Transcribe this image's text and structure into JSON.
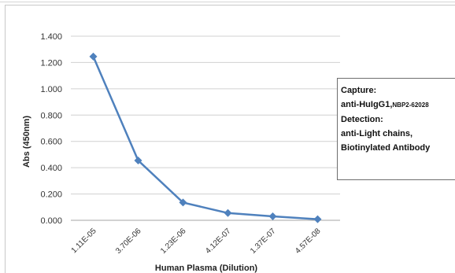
{
  "chart_data": {
    "type": "line",
    "xlabel": "Human Plasma (Dilution)",
    "ylabel": "Abs (450nm)",
    "categories": [
      "1.11E-05",
      "3.70E-06",
      "1.23E-06",
      "4.12E-07",
      "1.37E-07",
      "4.57E-08"
    ],
    "series": [
      {
        "values": [
          1.245,
          0.455,
          0.135,
          0.055,
          0.03,
          0.008
        ]
      }
    ],
    "ylim": [
      0,
      1.4
    ],
    "yticks": [
      "0.000",
      "0.200",
      "0.400",
      "0.600",
      "0.800",
      "1.000",
      "1.200",
      "1.400"
    ],
    "grid": "horizontal",
    "colors": {
      "series": "#4f81bd",
      "grid": "#d0d0d0",
      "axis": "#a6a6a6"
    }
  },
  "annotation": {
    "line1": "Capture:",
    "line2_main": "anti-HuIgG1,",
    "line2_small": "NBP2-62028",
    "line3": "Detection:",
    "line4": "anti-Light chains,",
    "line5": "Biotinylated Antibody"
  }
}
